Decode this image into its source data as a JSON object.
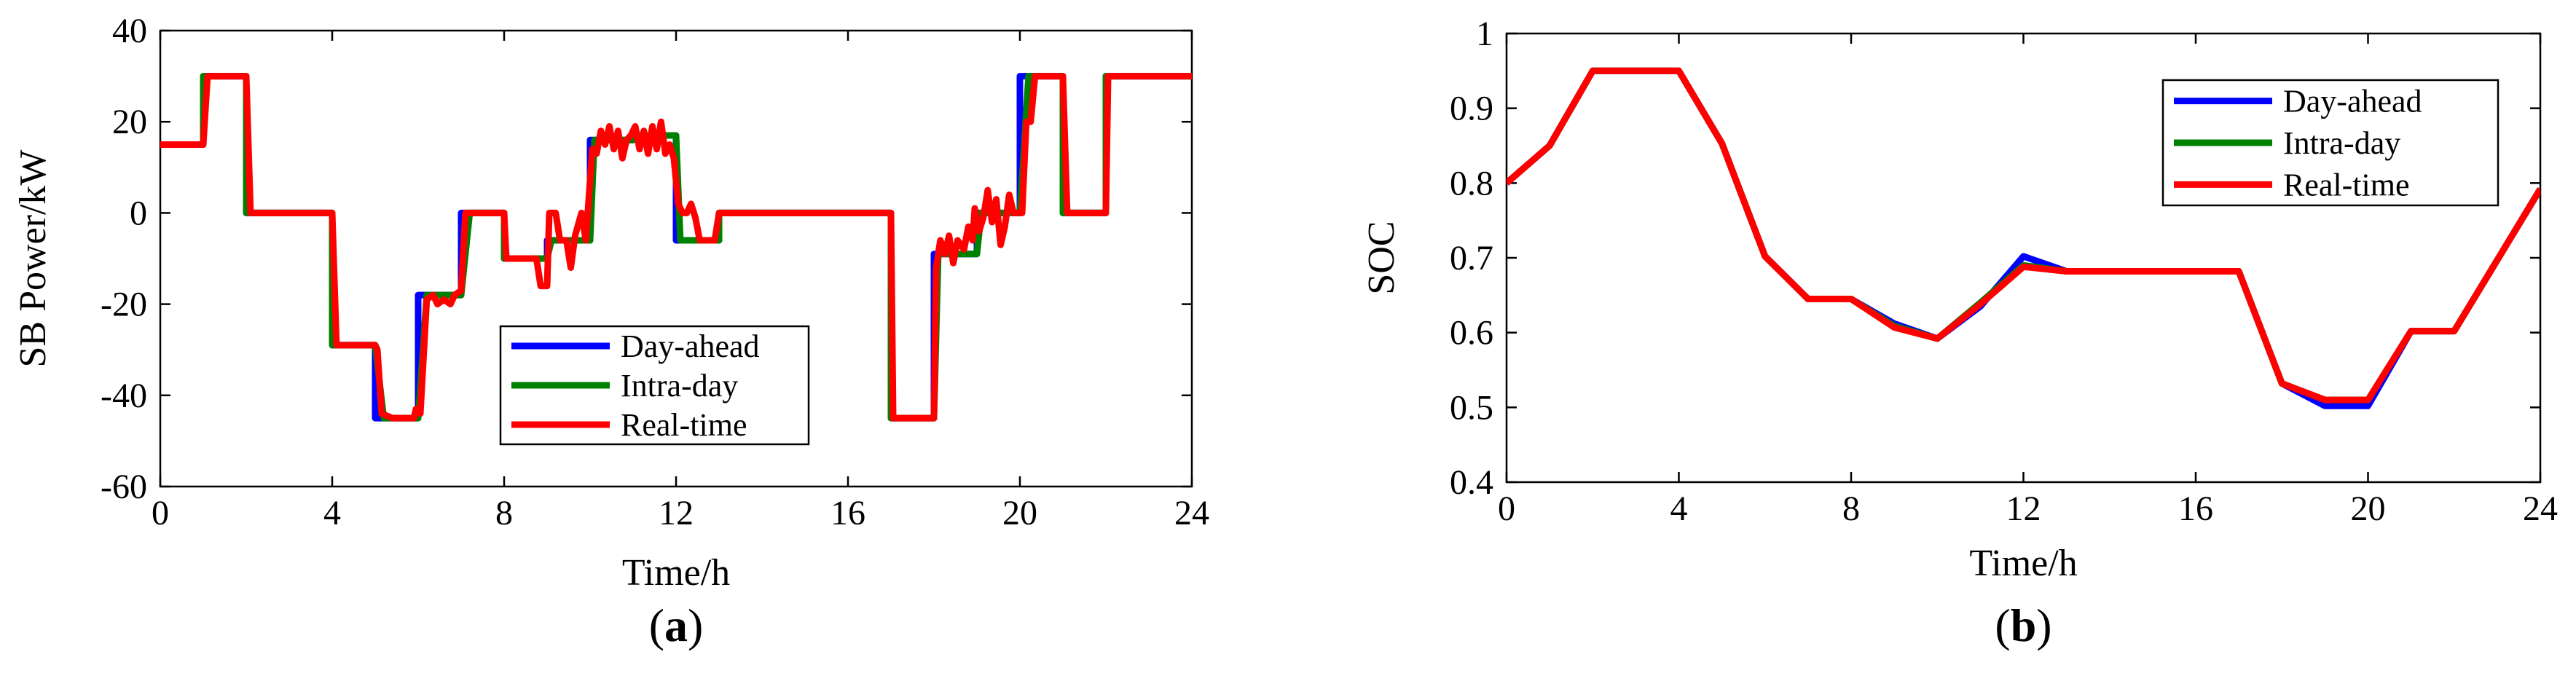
{
  "chart_data": [
    {
      "type": "line",
      "panel_label": "a",
      "xlabel": "Time/h",
      "ylabel": "SB Power/kW",
      "xlim": [
        0,
        24
      ],
      "ylim": [
        -60,
        40
      ],
      "xticks": [
        0,
        4,
        8,
        12,
        16,
        20,
        24
      ],
      "yticks": [
        -60,
        -40,
        -20,
        0,
        20,
        40
      ],
      "grid": false,
      "legend_position": "bottom-center",
      "series": [
        {
          "name": "Day-ahead",
          "color": "#0000ff",
          "points": [
            [
              0,
              15
            ],
            [
              1,
              15
            ],
            [
              1,
              30
            ],
            [
              2,
              30
            ],
            [
              2,
              0
            ],
            [
              4,
              0
            ],
            [
              4,
              -29
            ],
            [
              5,
              -29
            ],
            [
              5,
              -45
            ],
            [
              6,
              -45
            ],
            [
              6,
              -18
            ],
            [
              7,
              -18
            ],
            [
              7,
              0
            ],
            [
              8,
              0
            ],
            [
              8,
              -10
            ],
            [
              9,
              -10
            ],
            [
              9,
              -6
            ],
            [
              10,
              -6
            ],
            [
              10,
              16
            ],
            [
              11,
              16
            ],
            [
              11,
              17
            ],
            [
              12,
              17
            ],
            [
              12,
              -6
            ],
            [
              13,
              -6
            ],
            [
              13,
              0
            ],
            [
              17,
              0
            ],
            [
              17,
              -45
            ],
            [
              18,
              -45
            ],
            [
              18,
              -9
            ],
            [
              19,
              -9
            ],
            [
              19,
              0
            ],
            [
              20,
              0
            ],
            [
              20,
              30
            ],
            [
              21,
              30
            ],
            [
              21,
              0
            ],
            [
              22,
              0
            ],
            [
              22,
              30
            ],
            [
              24,
              30
            ]
          ]
        },
        {
          "name": "Intra-day",
          "color": "#008000",
          "points": [
            [
              0,
              15
            ],
            [
              1,
              15
            ],
            [
              1,
              30
            ],
            [
              2,
              30
            ],
            [
              2,
              0
            ],
            [
              4,
              0
            ],
            [
              4,
              -29
            ],
            [
              5,
              -29
            ],
            [
              5.2,
              -45
            ],
            [
              6,
              -45
            ],
            [
              6.2,
              -18
            ],
            [
              7,
              -18
            ],
            [
              7.2,
              0
            ],
            [
              8,
              0
            ],
            [
              8,
              -10
            ],
            [
              9,
              -10
            ],
            [
              9.1,
              -6
            ],
            [
              10,
              -6
            ],
            [
              10.1,
              16
            ],
            [
              11,
              16
            ],
            [
              11.2,
              17
            ],
            [
              12,
              17
            ],
            [
              12.1,
              -6
            ],
            [
              13,
              -6
            ],
            [
              13,
              0
            ],
            [
              17,
              0
            ],
            [
              17,
              -45
            ],
            [
              18,
              -45
            ],
            [
              18.1,
              -9
            ],
            [
              19,
              -9
            ],
            [
              19.1,
              0
            ],
            [
              20,
              0
            ],
            [
              20.2,
              30
            ],
            [
              21,
              30
            ],
            [
              21,
              0
            ],
            [
              22,
              0
            ],
            [
              22,
              30
            ],
            [
              24,
              30
            ]
          ]
        },
        {
          "name": "Real-time",
          "color": "#ff0000",
          "points": [
            [
              0,
              15
            ],
            [
              1,
              15
            ],
            [
              1.1,
              30
            ],
            [
              2,
              30
            ],
            [
              2.1,
              0
            ],
            [
              4,
              0
            ],
            [
              4.1,
              -29
            ],
            [
              5,
              -29
            ],
            [
              5.05,
              -30
            ],
            [
              5.15,
              -44
            ],
            [
              5.4,
              -45
            ],
            [
              5.9,
              -45
            ],
            [
              5.95,
              -43
            ],
            [
              6.05,
              -44
            ],
            [
              6.2,
              -19
            ],
            [
              6.35,
              -18
            ],
            [
              6.45,
              -20
            ],
            [
              6.6,
              -19
            ],
            [
              6.75,
              -20
            ],
            [
              6.85,
              -18
            ],
            [
              7,
              -17
            ],
            [
              7.1,
              0
            ],
            [
              8,
              0
            ],
            [
              8.05,
              -10
            ],
            [
              8.75,
              -10
            ],
            [
              8.85,
              -16
            ],
            [
              9.0,
              -16
            ],
            [
              9.05,
              0
            ],
            [
              9.2,
              0
            ],
            [
              9.3,
              -6
            ],
            [
              9.45,
              -6
            ],
            [
              9.55,
              -12
            ],
            [
              9.65,
              -5
            ],
            [
              9.8,
              0
            ],
            [
              9.9,
              -6
            ],
            [
              10.05,
              14
            ],
            [
              10.15,
              13
            ],
            [
              10.25,
              18
            ],
            [
              10.35,
              15
            ],
            [
              10.45,
              19
            ],
            [
              10.55,
              14
            ],
            [
              10.65,
              18
            ],
            [
              10.75,
              12
            ],
            [
              10.85,
              16
            ],
            [
              10.95,
              17
            ],
            [
              11.05,
              19
            ],
            [
              11.15,
              14
            ],
            [
              11.25,
              18
            ],
            [
              11.35,
              13
            ],
            [
              11.45,
              19
            ],
            [
              11.55,
              14
            ],
            [
              11.65,
              20
            ],
            [
              11.75,
              13
            ],
            [
              11.85,
              15
            ],
            [
              11.95,
              12
            ],
            [
              12.05,
              2
            ],
            [
              12.15,
              0
            ],
            [
              12.25,
              0
            ],
            [
              12.35,
              2
            ],
            [
              12.45,
              -1
            ],
            [
              12.55,
              -6
            ],
            [
              12.9,
              -6
            ],
            [
              13,
              0
            ],
            [
              17,
              0
            ],
            [
              17.05,
              -45
            ],
            [
              18,
              -45
            ],
            [
              18.05,
              -12
            ],
            [
              18.15,
              -6
            ],
            [
              18.25,
              -9
            ],
            [
              18.35,
              -5
            ],
            [
              18.45,
              -11
            ],
            [
              18.55,
              -6
            ],
            [
              18.7,
              -8
            ],
            [
              18.8,
              -3
            ],
            [
              18.9,
              -6
            ],
            [
              18.95,
              1
            ],
            [
              19.05,
              -4
            ],
            [
              19.15,
              -1
            ],
            [
              19.25,
              5
            ],
            [
              19.35,
              -2
            ],
            [
              19.45,
              3
            ],
            [
              19.55,
              -7
            ],
            [
              19.65,
              -3
            ],
            [
              19.75,
              4
            ],
            [
              19.85,
              0
            ],
            [
              20.05,
              0
            ],
            [
              20.15,
              20
            ],
            [
              20.25,
              20
            ],
            [
              20.35,
              30
            ],
            [
              21,
              30
            ],
            [
              21.1,
              0
            ],
            [
              22,
              0
            ],
            [
              22.05,
              30
            ],
            [
              24,
              30
            ]
          ]
        }
      ]
    },
    {
      "type": "line",
      "panel_label": "b",
      "xlabel": "Time/h",
      "ylabel": "SOC",
      "xlim": [
        0,
        24
      ],
      "ylim": [
        0.4,
        1
      ],
      "xticks": [
        0,
        4,
        8,
        12,
        16,
        20,
        24
      ],
      "yticks": [
        0.4,
        0.5,
        0.6,
        0.7,
        0.8,
        0.9,
        1
      ],
      "grid": false,
      "legend_position": "top-right",
      "series": [
        {
          "name": "Day-ahead",
          "color": "#0000ff",
          "points": [
            [
              0,
              0.8
            ],
            [
              1,
              0.85
            ],
            [
              2,
              0.95
            ],
            [
              3,
              0.95
            ],
            [
              4,
              0.95
            ],
            [
              5,
              0.853
            ],
            [
              6,
              0.702
            ],
            [
              7,
              0.645
            ],
            [
              8,
              0.645
            ],
            [
              9,
              0.612
            ],
            [
              10,
              0.592
            ],
            [
              11,
              0.635
            ],
            [
              12,
              0.702
            ],
            [
              13,
              0.682
            ],
            [
              14,
              0.682
            ],
            [
              15,
              0.682
            ],
            [
              16,
              0.682
            ],
            [
              17,
              0.682
            ],
            [
              18,
              0.532
            ],
            [
              19,
              0.502
            ],
            [
              20,
              0.502
            ],
            [
              21,
              0.602
            ],
            [
              22,
              0.602
            ],
            [
              23,
              0.697
            ],
            [
              24,
              0.792
            ]
          ]
        },
        {
          "name": "Intra-day",
          "color": "#008000",
          "points": [
            [
              0,
              0.8
            ],
            [
              1,
              0.85
            ],
            [
              2,
              0.95
            ],
            [
              3,
              0.95
            ],
            [
              4,
              0.95
            ],
            [
              5,
              0.853
            ],
            [
              6,
              0.702
            ],
            [
              7,
              0.645
            ],
            [
              8,
              0.645
            ],
            [
              9,
              0.609
            ],
            [
              10,
              0.592
            ],
            [
              11,
              0.64
            ],
            [
              12,
              0.69
            ],
            [
              13,
              0.682
            ],
            [
              14,
              0.682
            ],
            [
              15,
              0.682
            ],
            [
              16,
              0.682
            ],
            [
              17,
              0.682
            ],
            [
              18,
              0.532
            ],
            [
              19,
              0.51
            ],
            [
              20,
              0.51
            ],
            [
              21,
              0.602
            ],
            [
              22,
              0.602
            ],
            [
              23,
              0.697
            ],
            [
              24,
              0.792
            ]
          ]
        },
        {
          "name": "Real-time",
          "color": "#ff0000",
          "points": [
            [
              0,
              0.8
            ],
            [
              1,
              0.85
            ],
            [
              2,
              0.95
            ],
            [
              3,
              0.95
            ],
            [
              4,
              0.95
            ],
            [
              5,
              0.853
            ],
            [
              6,
              0.702
            ],
            [
              7,
              0.645
            ],
            [
              8,
              0.645
            ],
            [
              9,
              0.607
            ],
            [
              10,
              0.592
            ],
            [
              11,
              0.638
            ],
            [
              12,
              0.688
            ],
            [
              13,
              0.682
            ],
            [
              14,
              0.682
            ],
            [
              15,
              0.682
            ],
            [
              16,
              0.682
            ],
            [
              17,
              0.682
            ],
            [
              18,
              0.532
            ],
            [
              19,
              0.51
            ],
            [
              20,
              0.51
            ],
            [
              21,
              0.602
            ],
            [
              22,
              0.602
            ],
            [
              23,
              0.697
            ],
            [
              24,
              0.792
            ]
          ]
        }
      ]
    }
  ]
}
